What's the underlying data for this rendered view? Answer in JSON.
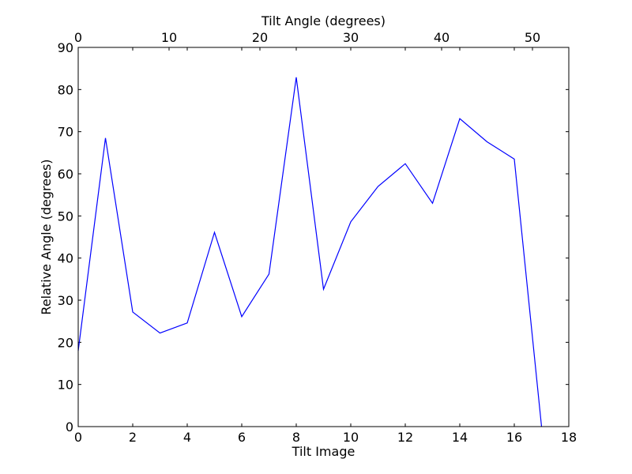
{
  "chart_data": {
    "type": "line",
    "xlabel": "Tilt Image",
    "ylabel": "Relative Angle (degrees)",
    "x2label": "Tilt Angle (degrees)",
    "xlim": [
      0,
      18
    ],
    "ylim": [
      0,
      90
    ],
    "x2lim": [
      0,
      54
    ],
    "x_ticks": [
      0,
      2,
      4,
      6,
      8,
      10,
      12,
      14,
      16,
      18
    ],
    "y_ticks": [
      0,
      10,
      20,
      30,
      40,
      50,
      60,
      70,
      80,
      90
    ],
    "x2_ticks": [
      0,
      10,
      20,
      30,
      40,
      50
    ],
    "grid": false,
    "line_color": "#0000ff",
    "series": [
      {
        "x": [
          0,
          1,
          2,
          3,
          4,
          5,
          6,
          7,
          8,
          9,
          10,
          11,
          12,
          13,
          14,
          15,
          16,
          17
        ],
        "values": [
          18,
          68.5,
          27.2,
          22.2,
          24.6,
          46.1,
          26.1,
          36.2,
          82.9,
          32.6,
          48.6,
          57,
          62.4,
          53,
          73.1,
          67.6,
          63.5,
          0
        ]
      }
    ]
  }
}
